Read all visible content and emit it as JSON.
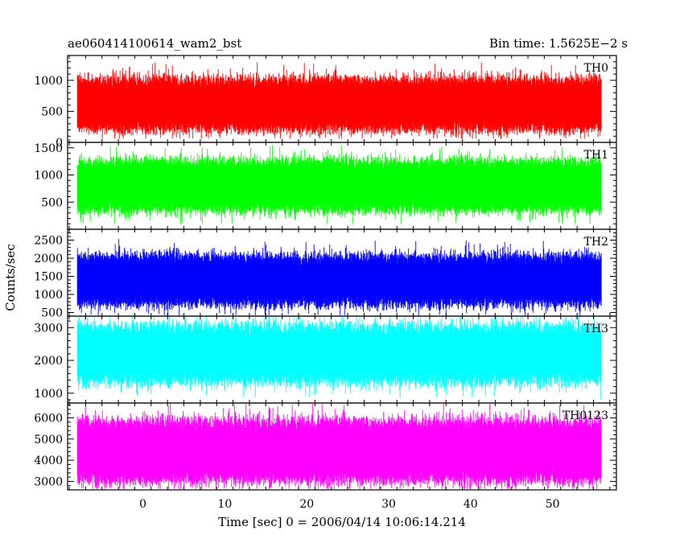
{
  "chart_data": {
    "type": "line",
    "title_left": "ae060414100614_wam2_bst",
    "title_right": "Bin time: 1.5625E−2 s",
    "xlabel": "Time [sec] 0 = 2006/04/14 10:06:14.214",
    "ylabel": "Counts/sec",
    "xlim": [
      -9.2,
      57.8
    ],
    "x_data_range": [
      -8.0,
      56.0
    ],
    "xticks": [
      0,
      10,
      20,
      30,
      40,
      50
    ],
    "xtick_labels": [
      "0",
      "10",
      "20",
      "30",
      "40",
      "50"
    ],
    "grid": false,
    "panels": [
      {
        "name": "TH0",
        "color": "#ff0000",
        "ylim": [
          0,
          1400
        ],
        "yticks": [
          0,
          500,
          1000
        ],
        "ytick_labels": [
          "0",
          "500",
          "1000"
        ],
        "typical_low": 280,
        "typical_high": 950,
        "min": 60,
        "max": 1400,
        "mean": 620
      },
      {
        "name": "TH1",
        "color": "#00ff00",
        "ylim": [
          0,
          1600
        ],
        "yticks": [
          500,
          1000,
          1500
        ],
        "ytick_labels": [
          "500",
          "1000",
          "1500"
        ],
        "typical_low": 430,
        "typical_high": 1180,
        "min": 100,
        "max": 1600,
        "mean": 800
      },
      {
        "name": "TH2",
        "color": "#0000ff",
        "ylim": [
          400,
          2800
        ],
        "yticks": [
          500,
          1000,
          1500,
          2000,
          2500
        ],
        "ytick_labels": [
          "500",
          "1000",
          "1500",
          "2000",
          "2500"
        ],
        "typical_low": 850,
        "typical_high": 1950,
        "min": 400,
        "max": 2800,
        "mean": 1400
      },
      {
        "name": "TH3",
        "color": "#00ffff",
        "ylim": [
          700,
          3350
        ],
        "yticks": [
          1000,
          2000,
          3000
        ],
        "ytick_labels": [
          "1000",
          "2000",
          "3000"
        ],
        "typical_low": 1500,
        "typical_high": 2900,
        "min": 800,
        "max": 3350,
        "mean": 2250
      },
      {
        "name": "TH0123",
        "color": "#ff00ff",
        "ylim": [
          2600,
          6700
        ],
        "yticks": [
          3000,
          4000,
          5000,
          6000
        ],
        "ytick_labels": [
          "3000",
          "4000",
          "5000",
          "6000"
        ],
        "typical_low": 3300,
        "typical_high": 5600,
        "min": 2650,
        "max": 6700,
        "mean": 4500
      }
    ]
  }
}
